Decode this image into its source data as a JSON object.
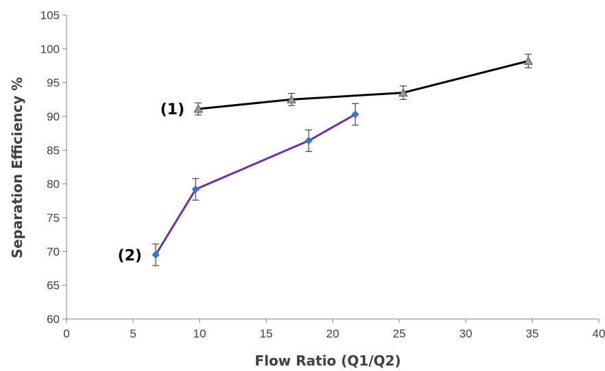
{
  "chart_data": {
    "type": "line",
    "title": "",
    "xlabel": "Flow Ratio (Q1/Q2)",
    "ylabel": "Separation Efficiency %",
    "xlim": [
      0,
      40
    ],
    "ylim": [
      60,
      105
    ],
    "x_ticks": [
      "0",
      "5",
      "10",
      "15",
      "20",
      "25",
      "30",
      "35",
      "40"
    ],
    "y_ticks": [
      "60",
      "65",
      "70",
      "75",
      "80",
      "85",
      "90",
      "95",
      "100",
      "105"
    ],
    "grid": false,
    "legend": "none",
    "series": [
      {
        "label": "(1)",
        "color": "#000000",
        "marker": "triangle",
        "marker_color": "#9a9a9a",
        "points": [
          {
            "x": 9.9,
            "y": 91.1,
            "err": 0.9
          },
          {
            "x": 16.9,
            "y": 92.5,
            "err": 0.9
          },
          {
            "x": 25.3,
            "y": 93.5,
            "err": 1.0
          },
          {
            "x": 34.7,
            "y": 98.2,
            "err": 1.0
          }
        ]
      },
      {
        "label": "(2)",
        "color": "#7030a0",
        "marker": "diamond",
        "marker_color": "#4472c4",
        "points": [
          {
            "x": 6.7,
            "y": 69.5,
            "err": 1.6
          },
          {
            "x": 9.7,
            "y": 79.2,
            "err": 1.6
          },
          {
            "x": 18.2,
            "y": 86.4,
            "err": 1.6
          },
          {
            "x": 21.7,
            "y": 90.3,
            "err": 1.6
          }
        ]
      }
    ]
  }
}
